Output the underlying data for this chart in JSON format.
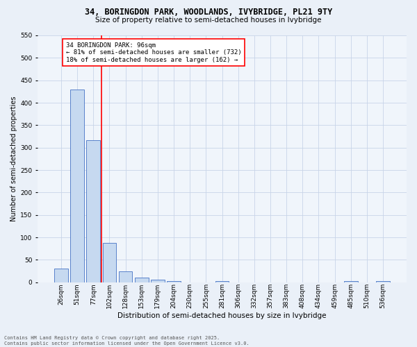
{
  "title_line1": "34, BORINGDON PARK, WOODLANDS, IVYBRIDGE, PL21 9TY",
  "title_line2": "Size of property relative to semi-detached houses in Ivybridge",
  "categories": [
    "26sqm",
    "51sqm",
    "77sqm",
    "102sqm",
    "128sqm",
    "153sqm",
    "179sqm",
    "204sqm",
    "230sqm",
    "255sqm",
    "281sqm",
    "306sqm",
    "332sqm",
    "357sqm",
    "383sqm",
    "408sqm",
    "434sqm",
    "459sqm",
    "485sqm",
    "510sqm",
    "536sqm"
  ],
  "values": [
    30,
    430,
    317,
    88,
    24,
    11,
    5,
    3,
    0,
    0,
    2,
    0,
    0,
    0,
    0,
    0,
    0,
    0,
    2,
    0,
    2
  ],
  "bar_color": "#c6d9f0",
  "bar_edge_color": "#4472c4",
  "vline_x_index": 2.5,
  "vline_color": "red",
  "annotation_text": "34 BORINGDON PARK: 96sqm\n← 81% of semi-detached houses are smaller (732)\n18% of semi-detached houses are larger (162) →",
  "ylabel": "Number of semi-detached properties",
  "xlabel": "Distribution of semi-detached houses by size in Ivybridge",
  "ylim": [
    0,
    550
  ],
  "yticks": [
    0,
    50,
    100,
    150,
    200,
    250,
    300,
    350,
    400,
    450,
    500,
    550
  ],
  "footer_line1": "Contains HM Land Registry data © Crown copyright and database right 2025.",
  "footer_line2": "Contains public sector information licensed under the Open Government Licence v3.0.",
  "bg_color": "#eaf0f8",
  "plot_bg_color": "#f0f5fb",
  "grid_color": "#c8d4e8",
  "title_fontsize": 8.5,
  "subtitle_fontsize": 7.5,
  "xlabel_fontsize": 7.5,
  "ylabel_fontsize": 7,
  "tick_fontsize": 6.5,
  "annot_fontsize": 6.5,
  "footer_fontsize": 5
}
